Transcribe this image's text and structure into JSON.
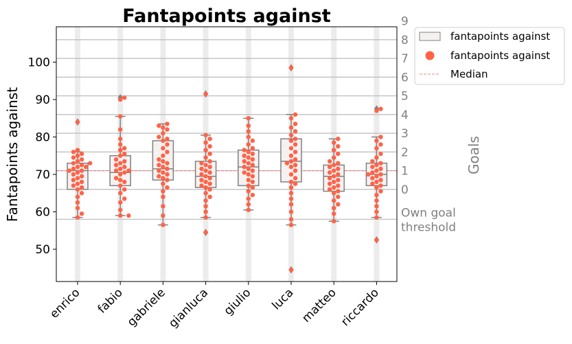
{
  "chart_data": {
    "type": "box-swarm",
    "title": "Fantapoints against",
    "ylabel": "Fantapoints against",
    "secondary_ylabel": "Goals",
    "ylim": [
      41,
      109
    ],
    "yticks": [
      50,
      60,
      70,
      80,
      90,
      100
    ],
    "categories": [
      "enrico",
      "fabio",
      "gabriele",
      "gianluca",
      "giulio",
      "luca",
      "matteo",
      "riccardo"
    ],
    "median_line": 71,
    "goal_thresholds": [
      {
        "label": "Own goal\nthreshold",
        "value": 58
      },
      {
        "label": "0",
        "value": 66
      },
      {
        "label": "1",
        "value": 71
      },
      {
        "label": "2",
        "value": 76
      },
      {
        "label": "3",
        "value": 81
      },
      {
        "label": "4",
        "value": 86
      },
      {
        "label": "5",
        "value": 91
      },
      {
        "label": "6",
        "value": 96
      },
      {
        "label": "7",
        "value": 101
      },
      {
        "label": "8",
        "value": 106
      },
      {
        "label": "9",
        "value": 111
      }
    ],
    "boxes": [
      {
        "name": "enrico",
        "whisker_low": 58.5,
        "q1": 66,
        "median": 71,
        "q3": 73,
        "whisker_high": 76,
        "outliers": [
          84
        ]
      },
      {
        "name": "fabio",
        "whisker_low": 59,
        "q1": 67,
        "median": 70.5,
        "q3": 75,
        "whisker_high": 85.5,
        "outliers": [
          90.5
        ]
      },
      {
        "name": "gabriele",
        "whisker_low": 56.5,
        "q1": 68.5,
        "median": 71.5,
        "q3": 79,
        "whisker_high": 83.5,
        "outliers": []
      },
      {
        "name": "gianluca",
        "whisker_low": 58.5,
        "q1": 66.5,
        "median": 69.5,
        "q3": 73.5,
        "whisker_high": 80.5,
        "outliers": [
          91.5,
          54.5
        ]
      },
      {
        "name": "giulio",
        "whisker_low": 60.5,
        "q1": 67,
        "median": 72,
        "q3": 76.5,
        "whisker_high": 85,
        "outliers": []
      },
      {
        "name": "luca",
        "whisker_low": 56.5,
        "q1": 68,
        "median": 73.5,
        "q3": 79.5,
        "whisker_high": 86,
        "outliers": [
          98.5,
          44.5
        ]
      },
      {
        "name": "matteo",
        "whisker_low": 57.5,
        "q1": 65.5,
        "median": 69.5,
        "q3": 72.5,
        "whisker_high": 79.5,
        "outliers": []
      },
      {
        "name": "riccardo",
        "whisker_low": 58.5,
        "q1": 67,
        "median": 70,
        "q3": 73,
        "whisker_high": 80,
        "outliers": [
          87.5,
          52.5
        ]
      }
    ],
    "swarm": [
      {
        "name": "enrico",
        "values": [
          58.5,
          59.5,
          61,
          62.5,
          64,
          65,
          66,
          66.5,
          67,
          67.5,
          68,
          68.5,
          69,
          69.5,
          70,
          70.5,
          71,
          71,
          71.5,
          72,
          72,
          72.5,
          73,
          73,
          73.5,
          74,
          74.5,
          75,
          75.5,
          76,
          76.5,
          84
        ]
      },
      {
        "name": "fabio",
        "values": [
          59,
          59,
          60.5,
          62.5,
          63.5,
          65,
          66,
          67,
          68,
          68.5,
          69,
          70,
          70.5,
          71,
          71,
          71.5,
          72,
          72.5,
          73,
          73.5,
          74,
          75,
          75.5,
          76.5,
          77,
          78,
          79.5,
          82,
          85.5,
          90,
          90.5
        ]
      },
      {
        "name": "gabriele",
        "values": [
          56.5,
          59,
          61.5,
          64,
          65.5,
          66.5,
          67.5,
          68.5,
          69,
          69.5,
          70,
          70.5,
          71,
          71.5,
          72,
          72.5,
          73,
          73.5,
          74,
          75,
          76,
          77,
          78,
          79,
          79.5,
          80,
          81,
          82,
          82.5,
          83,
          83.5
        ]
      },
      {
        "name": "gianluca",
        "values": [
          54.5,
          58.5,
          60,
          61.5,
          63,
          64,
          65,
          66,
          66.5,
          67,
          67.5,
          68,
          68.5,
          69,
          69.5,
          70,
          70.5,
          71,
          71.5,
          72,
          72.5,
          73,
          73.5,
          74.5,
          75.5,
          76.5,
          77.5,
          78.5,
          79.5,
          80.5,
          91.5
        ]
      },
      {
        "name": "giulio",
        "values": [
          60.5,
          62,
          63.5,
          64.5,
          65.5,
          66.5,
          67,
          68,
          68.5,
          69.5,
          70,
          70.5,
          71,
          71.5,
          72,
          72.5,
          73,
          73.5,
          74,
          74.5,
          75,
          75.5,
          76,
          76.5,
          77,
          78,
          79,
          80,
          81.5,
          83,
          85
        ]
      },
      {
        "name": "luca",
        "values": [
          44.5,
          56.5,
          58,
          60,
          62,
          63.5,
          65,
          66.5,
          67.5,
          68,
          69,
          70,
          71,
          72,
          72.5,
          73,
          73.5,
          74,
          75,
          76,
          77,
          78,
          79,
          79.5,
          80.5,
          81.5,
          82.5,
          83.5,
          85,
          86,
          98.5
        ]
      },
      {
        "name": "matteo",
        "values": [
          57.5,
          59.5,
          61,
          62,
          63,
          64,
          65,
          65.5,
          66,
          66.5,
          67,
          67.5,
          68,
          68.5,
          69,
          69.5,
          70,
          70.5,
          71,
          71.5,
          72,
          72.5,
          73,
          73.5,
          74.5,
          75.5,
          76.5,
          77.5,
          78.5,
          79.5
        ]
      },
      {
        "name": "riccardo",
        "values": [
          52.5,
          58.5,
          60,
          61.5,
          63,
          64.5,
          65.5,
          66.5,
          67,
          67.5,
          68,
          68.5,
          69,
          69.5,
          70,
          70,
          70.5,
          71,
          71.5,
          72,
          72.5,
          73,
          73.5,
          74.5,
          75.5,
          77,
          78,
          79,
          80,
          87,
          87.5
        ]
      }
    ],
    "legend": {
      "placement": "outside-top-right",
      "entries": [
        {
          "label": "fantapoints against",
          "kind": "box"
        },
        {
          "label": "fantapoints against",
          "kind": "point"
        },
        {
          "label": "Median",
          "kind": "dashed-line"
        }
      ]
    },
    "colors": {
      "points": "#ff6347",
      "box_fill": "#f6f1f1",
      "box_edge": "#808080",
      "median_line": "#f08080",
      "threshold_lines": "#c0c0c0",
      "column_bands": "#ececec",
      "goal_labels": "#808080"
    }
  }
}
